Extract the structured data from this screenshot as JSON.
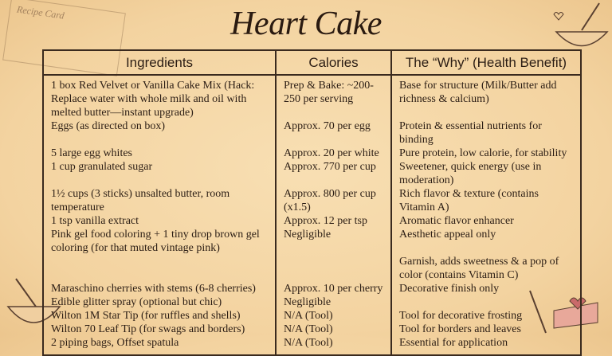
{
  "decoration": {
    "card_label": "Recipe Card"
  },
  "header": {
    "title": "Heart Cake"
  },
  "table": {
    "columns": [
      "Ingredients",
      "Calories",
      "The “Why” (Health Benefit)"
    ],
    "rows": [
      [
        "1 box Red Velvet or Vanilla Cake Mix (Hack: Replace water with whole milk and oil with melted butter—instant upgrade)",
        "Prep & Bake: ~200-250 per serving",
        "Base for structure (Milk/Butter add richness & calcium)"
      ],
      [
        "Eggs (as directed on box)",
        "Approx. 70 per egg",
        "Protein & essential nutrients for binding"
      ],
      [
        "5 large egg whites",
        "Approx. 20 per white",
        "Pure protein, low calorie, for stability"
      ],
      [
        "1 cup granulated sugar",
        "Approx. 770 per cup",
        "Sweetener, quick energy (use in moderation)"
      ],
      [
        "1½ cups (3 sticks) unsalted butter, room temperature",
        "Approx. 800 per cup (x1.5)",
        "Rich flavor & texture (contains Vitamin A)"
      ],
      [
        "1 tsp vanilla extract",
        "Approx. 12 per tsp",
        "Aromatic flavor enhancer"
      ],
      [
        "Pink gel food coloring + 1 tiny drop brown gel coloring (for that muted vintage pink)",
        "Negligible",
        "Aesthetic appeal only"
      ],
      [
        null,
        null,
        "Garnish, adds sweetness & a pop of color (contains Vitamin C)"
      ],
      [
        "Maraschino cherries with stems (6-8 cherries)",
        "Approx. 10 per cherry",
        "Decorative finish only"
      ],
      [
        "Edible glitter spray (optional but chic)",
        "Negligible",
        null
      ],
      [
        "Wilton 1M Star Tip (for ruffles and shells)",
        "N/A (Tool)",
        "Tool for decorative frosting"
      ],
      [
        "Wilton 70 Leaf Tip (for swags and borders)",
        "N/A (Tool)",
        "Tool for borders and leaves"
      ],
      [
        "2 piping bags, Offset spatula",
        "N/A (Tool)",
        "Essential for application"
      ]
    ]
  }
}
